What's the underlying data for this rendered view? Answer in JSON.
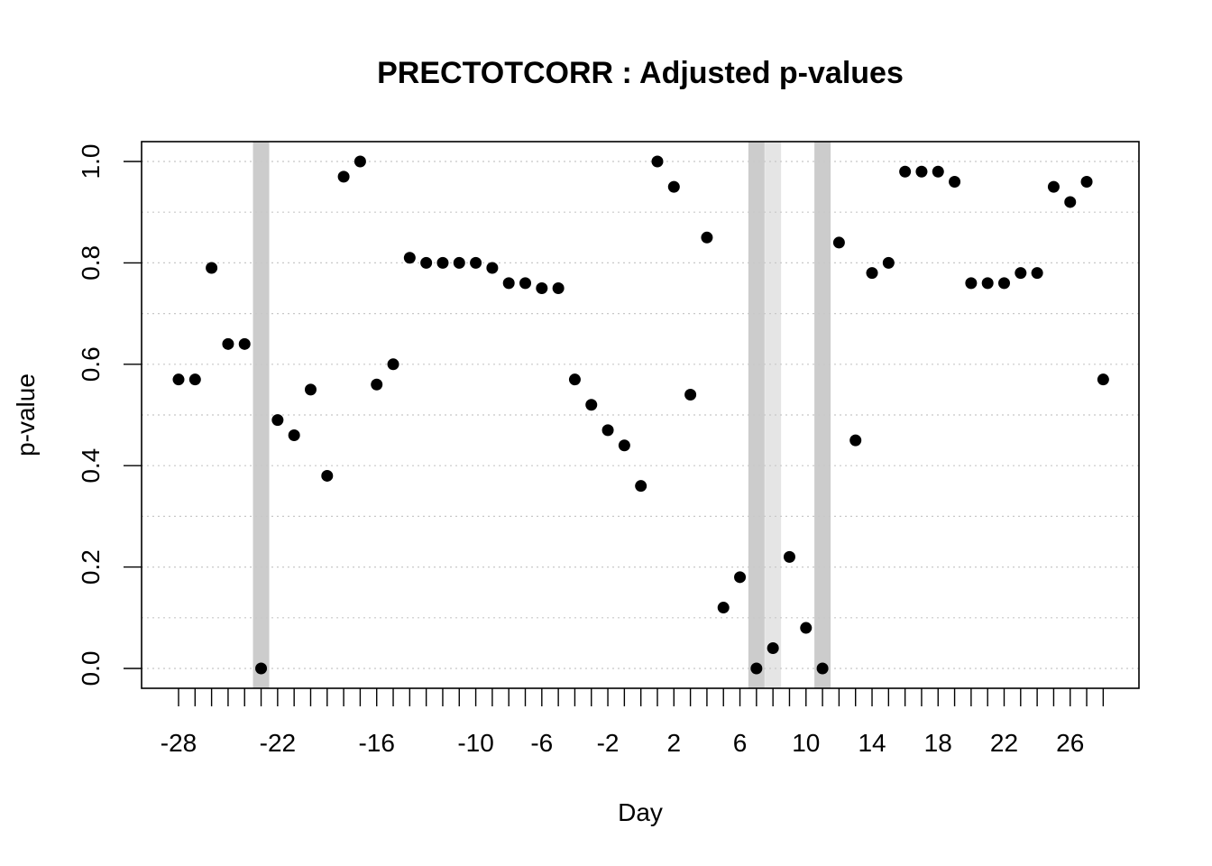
{
  "chart_data": {
    "type": "scatter",
    "title": "PRECTOTCORR : Adjusted p-values",
    "xlabel": "Day",
    "ylabel": "p-value",
    "x_ticks": [
      -28,
      -22,
      -16,
      -10,
      -6,
      -2,
      2,
      6,
      10,
      14,
      18,
      22,
      26
    ],
    "y_ticks": [
      0.0,
      0.2,
      0.4,
      0.6,
      0.8,
      1.0
    ],
    "y_tick_labels": [
      "0.0",
      "0.2",
      "0.4",
      "0.6",
      "0.8",
      "1.0"
    ],
    "xlim": [
      -28.5,
      28.5
    ],
    "ylim": [
      0,
      1
    ],
    "grid": "dotted horizontal lines at every 0.1",
    "highlight_bands": [
      {
        "x": -23,
        "color": "#cccccc"
      },
      {
        "x": 7,
        "color": "#cccccc"
      },
      {
        "x": 8,
        "color": "#e5e5e5"
      },
      {
        "x": 11,
        "color": "#cccccc"
      }
    ],
    "x": [
      -28,
      -27,
      -26,
      -25,
      -24,
      -23,
      -22,
      -21,
      -20,
      -19,
      -18,
      -17,
      -16,
      -15,
      -14,
      -13,
      -12,
      -11,
      -10,
      -9,
      -8,
      -7,
      -6,
      -5,
      -4,
      -3,
      -2,
      -1,
      0,
      1,
      2,
      3,
      4,
      5,
      6,
      7,
      8,
      9,
      10,
      11,
      12,
      13,
      14,
      15,
      16,
      17,
      18,
      19,
      20,
      21,
      22,
      23,
      24,
      25,
      26,
      27,
      28
    ],
    "y": [
      0.57,
      0.57,
      0.79,
      0.64,
      0.64,
      0.0,
      0.49,
      0.46,
      0.55,
      0.38,
      0.97,
      1.0,
      0.56,
      0.6,
      0.81,
      0.8,
      0.8,
      0.8,
      0.8,
      0.79,
      0.76,
      0.76,
      0.75,
      0.75,
      0.57,
      0.52,
      0.47,
      0.44,
      0.36,
      1.0,
      0.95,
      0.54,
      0.85,
      0.12,
      0.18,
      0.0,
      0.04,
      0.22,
      0.08,
      0.0,
      0.84,
      0.45,
      0.78,
      0.8,
      0.98,
      0.98,
      0.98,
      0.96,
      0.76,
      0.76,
      0.76,
      0.78,
      0.78,
      0.95,
      0.92,
      0.96,
      0.57
    ]
  }
}
